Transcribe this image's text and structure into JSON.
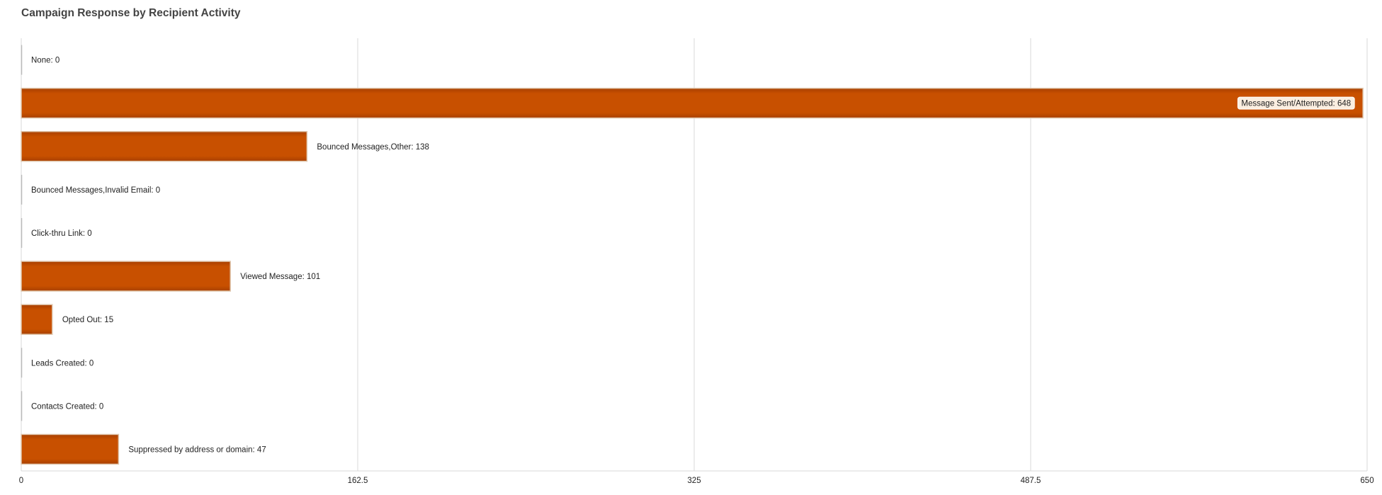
{
  "chart_data": {
    "type": "bar",
    "orientation": "horizontal",
    "title": "Campaign Response by Recipient Activity",
    "categories": [
      "None",
      "Message Sent/Attempted",
      "Bounced Messages,Other",
      "Bounced Messages,Invalid Email",
      "Click-thru Link",
      "Viewed Message",
      "Opted Out",
      "Leads Created",
      "Contacts Created",
      "Suppressed by address or domain"
    ],
    "values": [
      0,
      648,
      138,
      0,
      0,
      101,
      15,
      0,
      0,
      47
    ],
    "data_labels": [
      "None: 0",
      "Message Sent/Attempted: 648",
      "Bounced Messages,Other: 138",
      "Bounced Messages,Invalid Email: 0",
      "Click-thru Link: 0",
      "Viewed Message: 101",
      "Opted Out: 15",
      "Leads Created: 0",
      "Contacts Created: 0",
      "Suppressed by address or domain: 47"
    ],
    "xlim": [
      0,
      650
    ],
    "xticks": [
      0,
      162.5,
      325,
      487.5,
      650
    ],
    "xtick_labels": [
      "0",
      "162.5",
      "325",
      "487.5",
      "650"
    ],
    "xlabel": "",
    "ylabel": "",
    "grid": true,
    "legend": "none",
    "colors": {
      "bar": "#c85000",
      "bar_dark": "#a84000",
      "bar_border": "#e0c8b0",
      "grid": "#d9d9d9",
      "label_box": "#fbeee0"
    }
  }
}
